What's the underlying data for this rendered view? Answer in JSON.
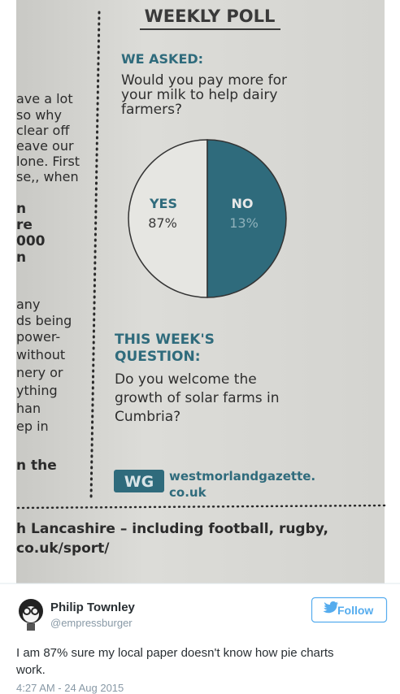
{
  "photo": {
    "left_column": [
      "ave a lot",
      "so why",
      "clear off",
      "eave our",
      "lone. First",
      "se,, when",
      "n",
      "re",
      "000",
      "n",
      "any",
      "ds being",
      "power-",
      "without",
      "nery or",
      "ything",
      "han",
      "ep in",
      "n the"
    ],
    "poll": {
      "title": "WEEKLY POLL",
      "asked_label": "WE ASKED:",
      "question": [
        "Would you pay more for",
        "your milk to help dairy",
        "farmers?"
      ],
      "yes_label": "YES",
      "yes_value": "87%",
      "no_label": "NO",
      "no_value": "13%",
      "next_label": [
        "THIS WEEK'S",
        "QUESTION:"
      ],
      "next_question": [
        "Do you welcome the",
        "growth of solar farms in",
        "Cumbria?"
      ],
      "logo": "WG",
      "website": [
        "westmorlandgazette.",
        "co.uk"
      ]
    },
    "footer": [
      "h Lancashire – including football, rugby,",
      "co.uk/sport/"
    ]
  },
  "tweet": {
    "name": "Philip Townley",
    "handle": "@empressburger",
    "follow": "Follow",
    "text": [
      "I am 87% sure my local paper doesn't know how pie charts",
      "work."
    ],
    "timestamp": "4:27 AM - 24 Aug 2015"
  }
}
